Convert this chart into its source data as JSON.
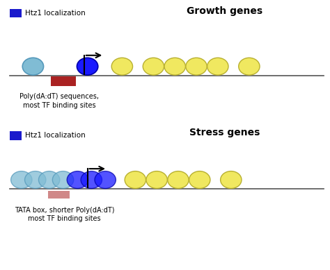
{
  "bg_color": "#ffffff",
  "title1": "Growth genes",
  "title2": "Stress genes",
  "legend_label": "Htz1 localization",
  "legend_color": "#1a1acc",
  "label1": "Poly(dA:dT) sequences,\nmost TF binding sites",
  "label2": "TATA box, shorter Poly(dA:dT)\nmost TF binding sites",
  "light_blue": "#80bcd4",
  "blue": "#1a1aff",
  "blue_medium": "#4444cc",
  "yellow": "#f0e860",
  "yellow_edge": "#b8b030",
  "red_box": "#aa2222",
  "pink_box": "#d08888",
  "line_color": "#555555",
  "nuc_r": 0.32,
  "p1_baseline": 7.2,
  "p2_baseline": 3.0,
  "xlim": [
    0,
    10
  ],
  "ylim": [
    0,
    10
  ]
}
